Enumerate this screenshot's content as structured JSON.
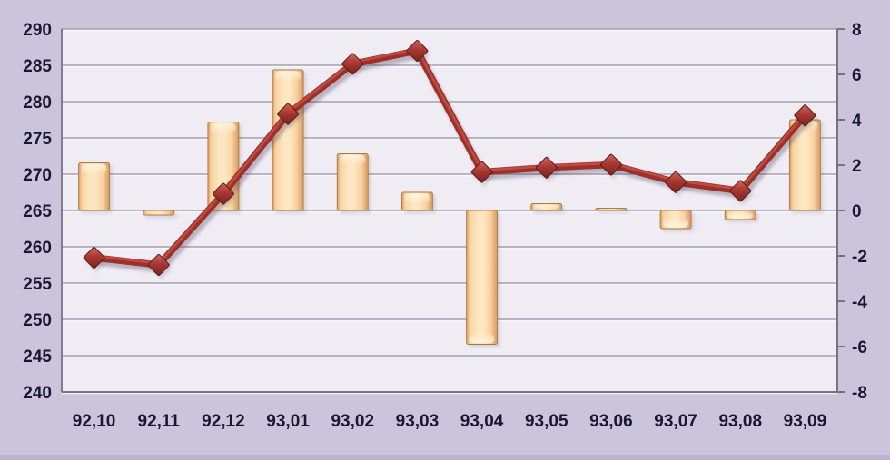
{
  "chart_data": {
    "type": "combo",
    "title": "",
    "subtitle": "",
    "legend": "none",
    "grid": true,
    "categories": [
      "92,10",
      "92,11",
      "92,12",
      "93,01",
      "93,02",
      "93,03",
      "93,04",
      "93,05",
      "93,06",
      "93,07",
      "93,08",
      "93,09"
    ],
    "series": [
      {
        "name": "monthly-change-bars",
        "type": "bar",
        "axis": "right",
        "values": [
          2.1,
          -0.2,
          3.9,
          6.2,
          2.5,
          0.8,
          -5.9,
          0.3,
          0.1,
          -0.8,
          -0.4,
          4.0
        ]
      },
      {
        "name": "index-level-line",
        "type": "line",
        "axis": "left",
        "values": [
          258.5,
          257.5,
          267.3,
          278.3,
          285.2,
          287.0,
          270.3,
          270.9,
          271.3,
          268.9,
          267.7,
          278.1
        ]
      }
    ],
    "left_axis": {
      "min": 240,
      "max": 290,
      "step": 5,
      "tick_labels": [
        "290",
        "285",
        "280",
        "275",
        "270",
        "265",
        "260",
        "255",
        "250",
        "245",
        "240"
      ]
    },
    "right_axis": {
      "min": -8,
      "max": 8,
      "step": 2,
      "tick_labels": [
        "8",
        "6",
        "4",
        "2",
        "0",
        "-2",
        "-4",
        "-6",
        "-8"
      ]
    }
  },
  "colors": {
    "background": "#CCC4DA",
    "background_bottom_band": "#BDB3CE",
    "plot_background": "#EFECF4",
    "gridline": "#96939F",
    "gridline_emboss": "#FBFAFD",
    "axis_line": "#76737F",
    "bar_edge_dark": "#D8985F",
    "bar_mid": "#F7D2A0",
    "bar_center_light": "#FDE7C2",
    "bar_border": "#AA7C45",
    "bar_cap_highlight": "#FFF3DC",
    "line_color": "#9E302C",
    "line_highlight": "#C25247",
    "marker_light": "#CE6A5C",
    "marker_mid": "#A83832",
    "marker_dark": "#7C231E",
    "marker_stroke": "#5E1A17",
    "shadow": "rgba(60,45,70,0.30)",
    "tick_text": "#18182F"
  }
}
